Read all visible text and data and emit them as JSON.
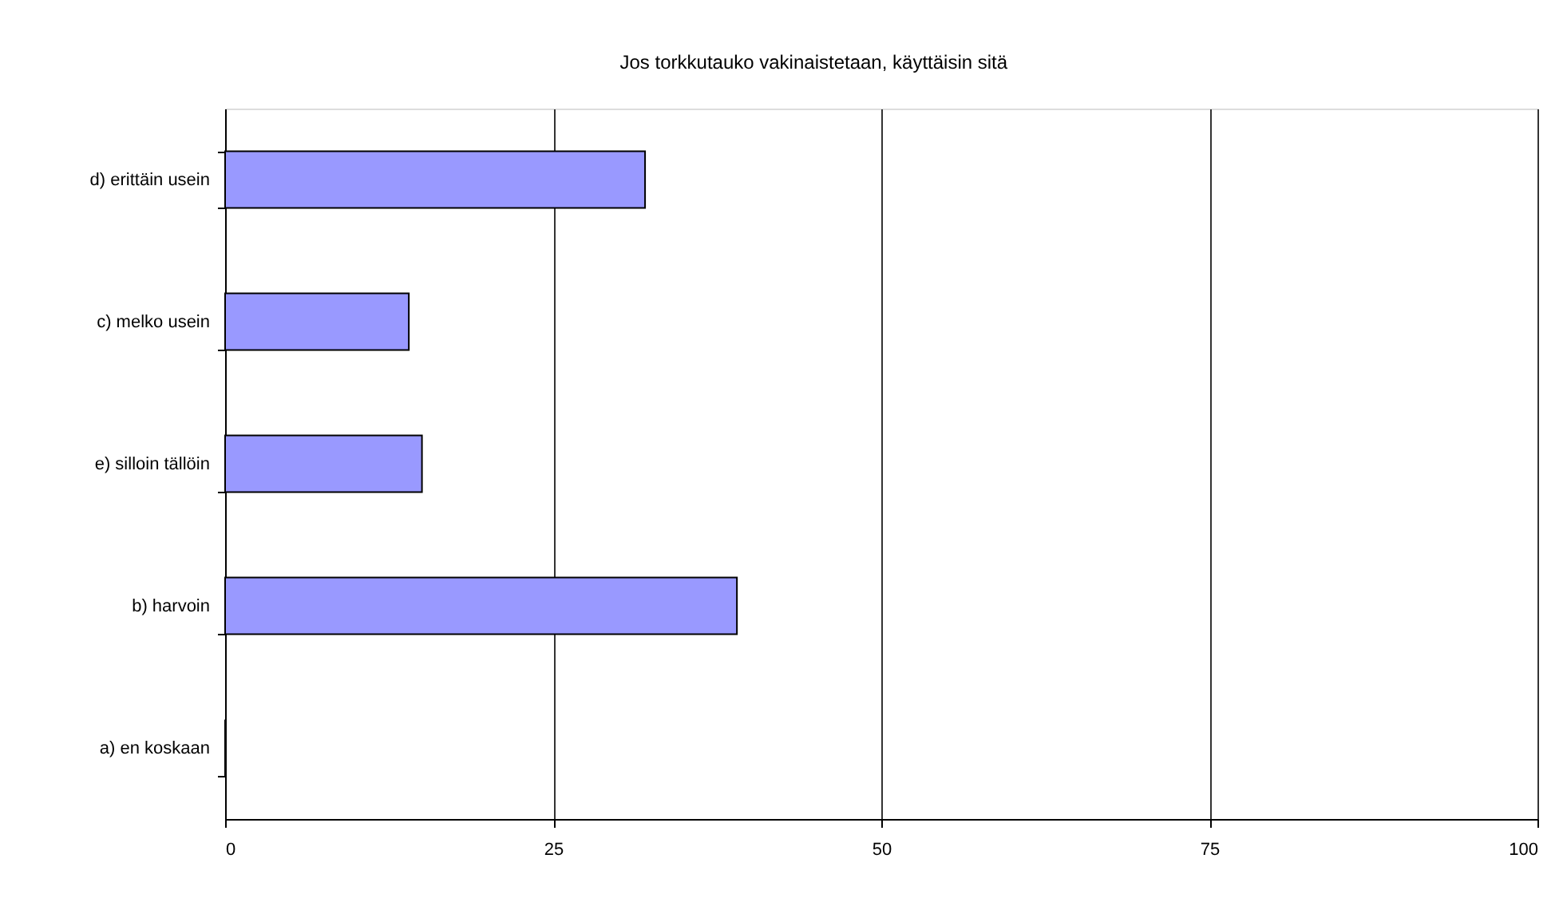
{
  "chart_data": {
    "type": "bar",
    "orientation": "horizontal",
    "title": "Jos torkkutauko vakinaistetaan, käyttäisin sitä",
    "categories": [
      "d) erittäin usein",
      "c) melko usein",
      "e) silloin tällöin",
      "b) harvoin",
      "a) en koskaan"
    ],
    "values": [
      32,
      14,
      15,
      39,
      0
    ],
    "color": "#9999ff",
    "xlim": [
      0,
      100
    ],
    "xticks": [
      0,
      25,
      50,
      75,
      100
    ],
    "grid": "x"
  }
}
